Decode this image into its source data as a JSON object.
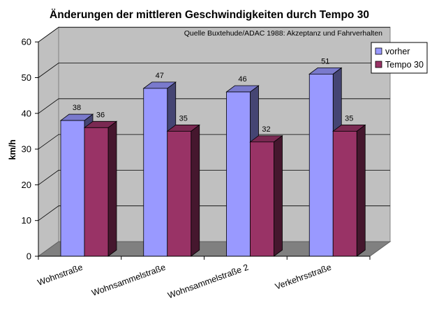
{
  "chart_data": {
    "type": "bar",
    "title": "Änderungen der mittleren Geschwindigkeiten durch Tempo 30",
    "source_note": "Quelle Buxtehude/ADAC 1988: Akzeptanz und Fahrverhalten",
    "ylabel": "km/h",
    "xlabel": "",
    "ylim": [
      0,
      60
    ],
    "yticks": [
      0,
      10,
      20,
      30,
      40,
      50,
      60
    ],
    "grid": true,
    "legend_position": "top-right",
    "three_d": true,
    "categories": [
      "Wohnstraße",
      "Wohnsammelstraße",
      "Wohnsammelstraße 2",
      "Verkehrsstraße"
    ],
    "series": [
      {
        "name": "vorher",
        "color": "#9999ff",
        "values": [
          38,
          47,
          46,
          51
        ]
      },
      {
        "name": "Tempo 30",
        "color": "#993366",
        "values": [
          36,
          35,
          32,
          35
        ]
      }
    ]
  }
}
